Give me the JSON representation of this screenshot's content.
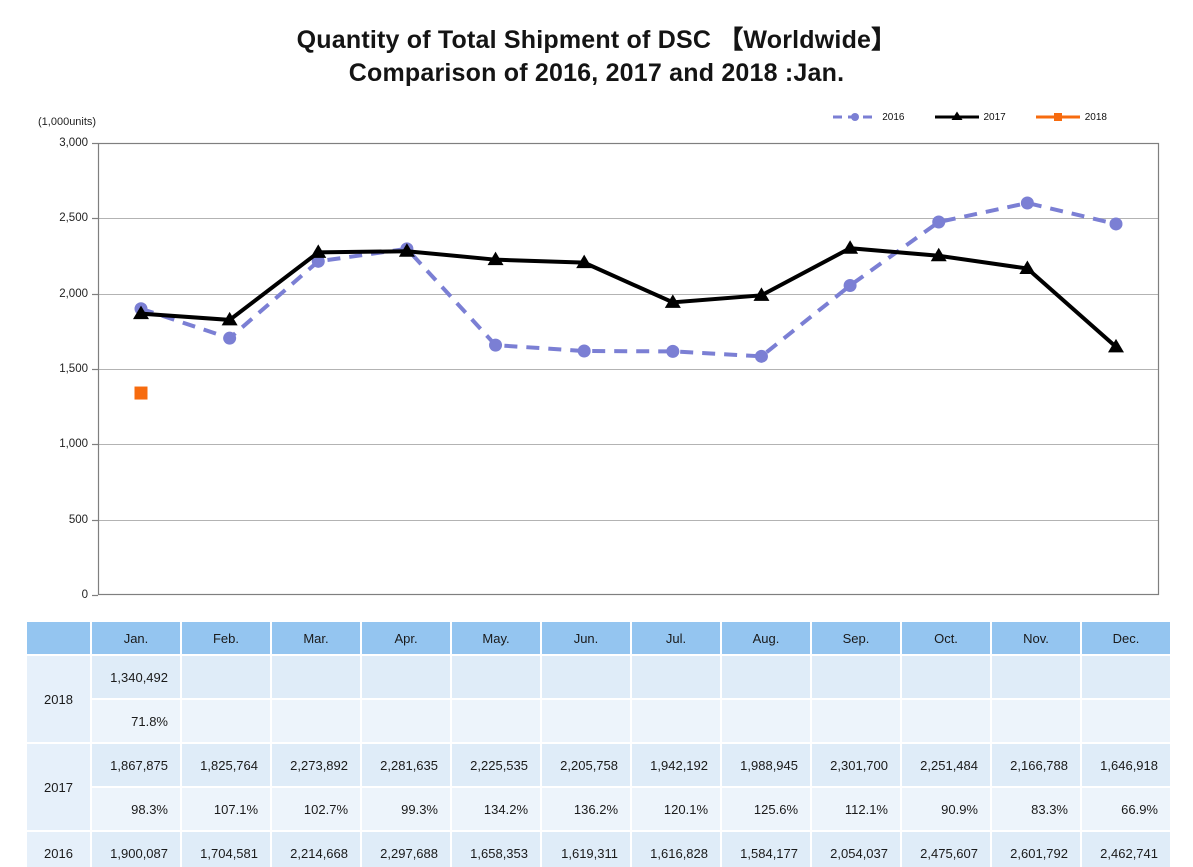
{
  "title": {
    "line1": "Quantity of Total Shipment of DSC 【Worldwide】",
    "line2": "Comparison of 2016, 2017 and 2018 :Jan."
  },
  "chart_data": {
    "type": "line",
    "title": "Quantity of Total Shipment of DSC 【Worldwide】 Comparison of 2016, 2017 and 2018 :Jan.",
    "unit_label": "(1,000units)",
    "xlabel": "",
    "ylabel": "",
    "ylim": [
      0,
      3000
    ],
    "grid": true,
    "legend_position": "top-right",
    "yticks": [
      {
        "v": 3000,
        "label": "3,000"
      },
      {
        "v": 2500,
        "label": "2,500"
      },
      {
        "v": 2000,
        "label": "2,000"
      },
      {
        "v": 1500,
        "label": "1,500"
      },
      {
        "v": 1000,
        "label": "1,000"
      },
      {
        "v": 500,
        "label": "500"
      },
      {
        "v": 0,
        "label": "0"
      }
    ],
    "categories": [
      "Jan.",
      "Feb.",
      "Mar.",
      "Apr.",
      "May.",
      "Jun.",
      "Jul.",
      "Aug.",
      "Sep.",
      "Oct.",
      "Nov.",
      "Dec."
    ],
    "series": [
      {
        "name": "2016",
        "color": "#7B7FD4",
        "style": "dashed",
        "marker": "circle",
        "values": [
          1900.087,
          1704.581,
          2214.668,
          2297.688,
          1658.353,
          1619.311,
          1616.828,
          1584.177,
          2054.037,
          2475.607,
          2601.792,
          2462.741
        ]
      },
      {
        "name": "2017",
        "color": "#000000",
        "style": "solid",
        "marker": "triangle",
        "values": [
          1867.875,
          1825.764,
          2273.892,
          2281.635,
          2225.535,
          2205.758,
          1942.192,
          1988.945,
          2301.7,
          2251.484,
          2166.788,
          1646.918
        ]
      },
      {
        "name": "2018",
        "color": "#F76B0E",
        "style": "solid",
        "marker": "square",
        "values": [
          1340.492,
          null,
          null,
          null,
          null,
          null,
          null,
          null,
          null,
          null,
          null,
          null
        ]
      }
    ]
  },
  "table": {
    "corner": "",
    "months": [
      "Jan.",
      "Feb.",
      "Mar.",
      "Apr.",
      "May.",
      "Jun.",
      "Jul.",
      "Aug.",
      "Sep.",
      "Oct.",
      "Nov.",
      "Dec."
    ],
    "groups": [
      {
        "year": "2018",
        "rows": [
          {
            "kind": "value",
            "cells": [
              "1,340,492",
              "",
              "",
              "",
              "",
              "",
              "",
              "",
              "",
              "",
              "",
              ""
            ]
          },
          {
            "kind": "pct",
            "cells": [
              "71.8%",
              "",
              "",
              "",
              "",
              "",
              "",
              "",
              "",
              "",
              "",
              ""
            ]
          }
        ]
      },
      {
        "year": "2017",
        "rows": [
          {
            "kind": "value",
            "cells": [
              "1,867,875",
              "1,825,764",
              "2,273,892",
              "2,281,635",
              "2,225,535",
              "2,205,758",
              "1,942,192",
              "1,988,945",
              "2,301,700",
              "2,251,484",
              "2,166,788",
              "1,646,918"
            ]
          },
          {
            "kind": "pct",
            "cells": [
              "98.3%",
              "107.1%",
              "102.7%",
              "99.3%",
              "134.2%",
              "136.2%",
              "120.1%",
              "125.6%",
              "112.1%",
              "90.9%",
              "83.3%",
              "66.9%"
            ]
          }
        ]
      },
      {
        "year": "2016",
        "rows": [
          {
            "kind": "value",
            "cells": [
              "1,900,087",
              "1,704,581",
              "2,214,668",
              "2,297,688",
              "1,658,353",
              "1,619,311",
              "1,616,828",
              "1,584,177",
              "2,054,037",
              "2,475,607",
              "2,601,792",
              "2,462,741"
            ]
          }
        ]
      }
    ]
  },
  "colors": {
    "table_header_bg": "#94C5F0",
    "table_value_bg": "#DFECF8",
    "table_pct_bg": "#EDF4FB",
    "table_label_bg": "#E6F0FA",
    "plot_border": "#7f7f7f",
    "gridline": "#b3b3b3"
  }
}
